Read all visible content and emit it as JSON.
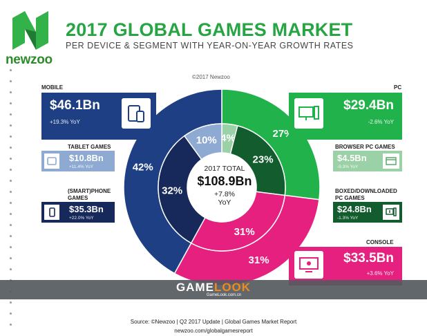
{
  "header": {
    "brand": "newzoo",
    "title": "2017 GLOBAL GAMES MARKET",
    "subtitle": "PER DEVICE & SEGMENT WITH YEAR-ON-YEAR GROWTH RATES",
    "copyright": "©2017 Newzoo"
  },
  "segments": {
    "mobile": {
      "label": "MOBILE",
      "value": "$46.1Bn",
      "yoy": "+19.3% YoY",
      "icon": "tablet-phone-icon"
    },
    "tablet": {
      "label": "TABLET GAMES",
      "value": "$10.8Bn",
      "yoy": "+11.4% YoY",
      "icon": "tablet-icon"
    },
    "smartphone": {
      "label": "(SMART)PHONE GAMES",
      "value": "$35.3Bn",
      "yoy": "+22.0% YoY",
      "icon": "phone-icon"
    },
    "pc": {
      "label": "PC",
      "value": "$29.4Bn",
      "yoy": "-2.6% YoY",
      "icon": "desktop-pc-icon"
    },
    "browser": {
      "label": "BROWSER PC GAMES",
      "value": "$4.5Bn",
      "yoy": "-9.3% YoY",
      "icon": "browser-icon"
    },
    "boxed": {
      "label": "BOXED/DOWNLOADED PC GAMES",
      "value": "$24.8Bn",
      "yoy": "-1.3% YoY",
      "icon": "download-pc-icon"
    },
    "console": {
      "label": "CONSOLE",
      "value": "$33.5Bn",
      "yoy": "+3.6% YoY",
      "icon": "tv-gamepad-icon"
    }
  },
  "center": {
    "line1": "2017 TOTAL",
    "total": "$108.9Bn",
    "growth": "+7.8%",
    "yoy": "YoY"
  },
  "watermark": {
    "prefix": "GAME",
    "suffix": "LOOK",
    "sub": "GameLook.com.cn"
  },
  "footer": {
    "source": "Source: ©Newzoo | Q2 2017 Update | Global Games Market Report",
    "url": "newzoo.com/globalgamesreport"
  },
  "colors": {
    "mobile": "#1f3f84",
    "tablet": "#8eaad3",
    "smartphone": "#17285a",
    "pc": "#22b24b",
    "browser": "#9bd1a6",
    "boxed": "#125c2e",
    "console": "#e5207f",
    "title": "#27a443"
  },
  "chart_data": {
    "type": "pie",
    "title": "2017 GLOBAL GAMES MARKET",
    "outer_ring": {
      "categories": [
        "PC",
        "Console",
        "Mobile"
      ],
      "values": [
        27,
        31,
        42
      ],
      "labels": [
        "27%",
        "31%",
        "42%"
      ]
    },
    "inner_ring": {
      "categories": [
        "Browser PC Games",
        "Boxed/Downloaded PC Games",
        "Console",
        "(Smart)phone Games",
        "Tablet Games"
      ],
      "values": [
        4,
        23,
        31,
        32,
        10
      ],
      "labels": [
        "4%",
        "23%",
        "31%",
        "32%",
        "10%"
      ]
    },
    "total": "$108.9Bn"
  }
}
